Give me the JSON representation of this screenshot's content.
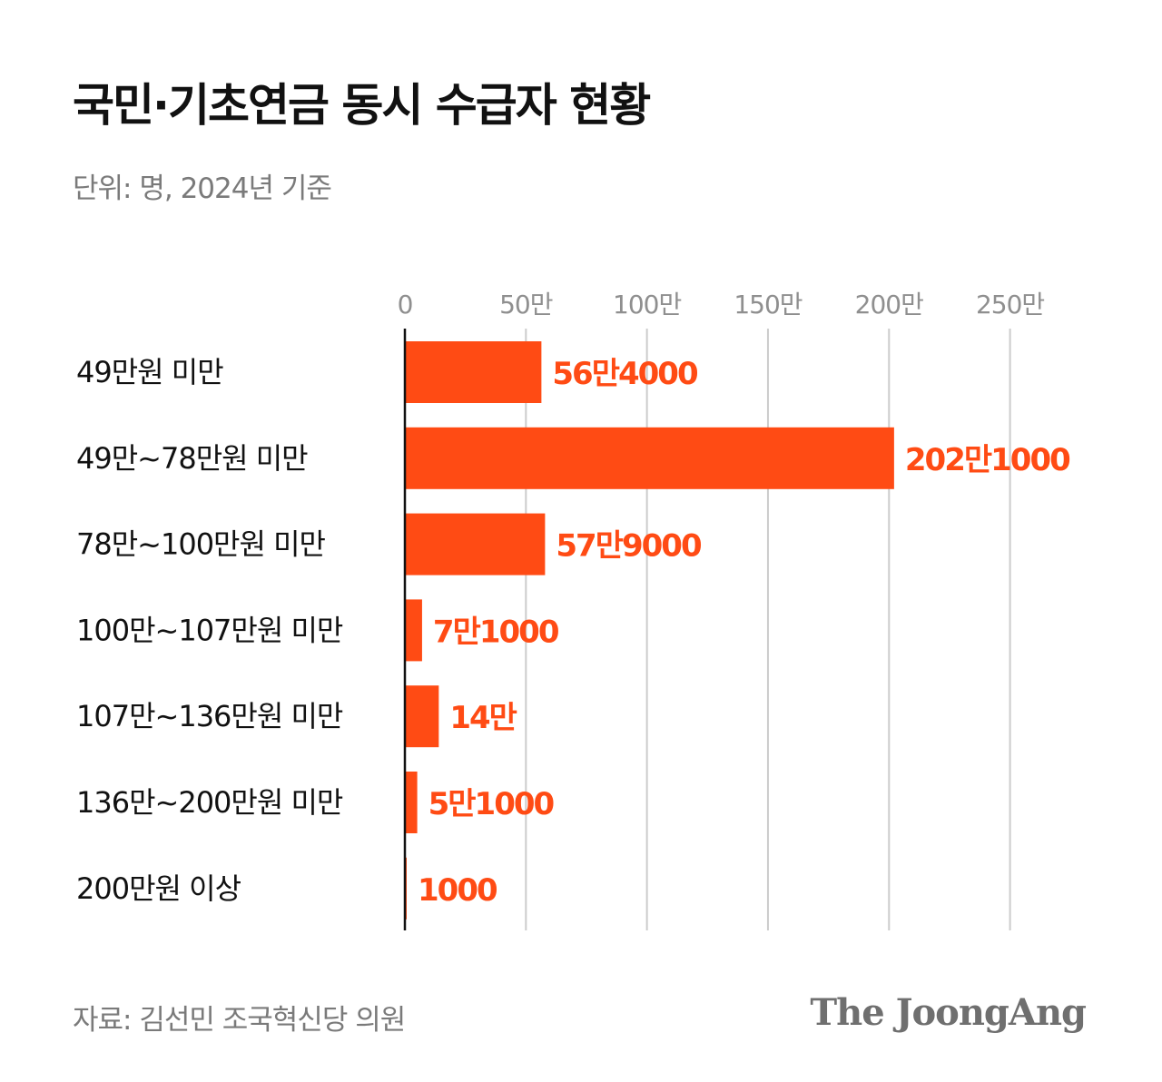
{
  "title": "국민·기초연금 동시 수급자 현황",
  "subtitle": "단위: 명, 2024년 기준",
  "source": "자료: 김선민 조국혁신당 의원",
  "logo": "The JoongAng",
  "colors": {
    "bar": "#ff4b14",
    "label": "#ff4b14",
    "grid": "#cccccc",
    "axis": "#111111"
  },
  "chart_data": {
    "type": "bar",
    "orientation": "horizontal",
    "title": "국민·기초연금 동시 수급자 현황",
    "unit": "명",
    "categories": [
      "49만원 미만",
      "49만~78만원 미만",
      "78만~100만원 미만",
      "100만~107만원 미만",
      "107만~136만원 미만",
      "136만~200만원 미만",
      "200만원 이상"
    ],
    "values": [
      564000,
      2021000,
      579000,
      71000,
      140000,
      51000,
      1000
    ],
    "data_labels": [
      "56만4000",
      "202만1000",
      "57만9000",
      "7만1000",
      "14만",
      "5만1000",
      "1000"
    ],
    "xticks": [
      0,
      500000,
      1000000,
      1500000,
      2000000,
      2500000
    ],
    "xtick_labels": [
      "0",
      "50만",
      "100만",
      "150만",
      "200만",
      "250만"
    ],
    "xlim": [
      0,
      2500000
    ],
    "grid": true,
    "axis_position": "top"
  }
}
